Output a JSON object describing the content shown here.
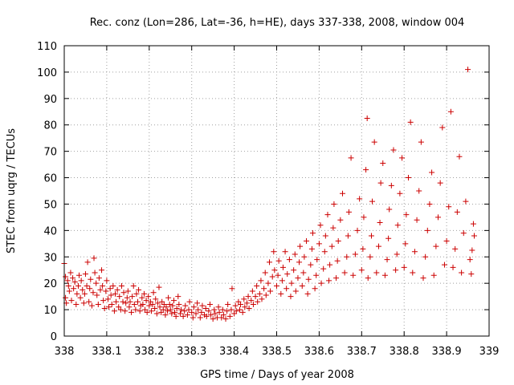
{
  "chart_data": {
    "type": "scatter",
    "title": "Rec. conz (Lon=286, Lat=-36, h=HE), days 337-338, 2008, window 004",
    "xlabel": "GPS time / Days of year 2008",
    "ylabel": "STEC from uqrg / TECUs",
    "xlim": [
      338,
      339
    ],
    "ylim": [
      0,
      110
    ],
    "xticks": [
      "338",
      "338.1",
      "338.2",
      "338.3",
      "338.4",
      "338.5",
      "338.6",
      "338.7",
      "338.8",
      "338.9",
      "339"
    ],
    "yticks": [
      "0",
      "10",
      "20",
      "30",
      "40",
      "50",
      "60",
      "70",
      "80",
      "90",
      "100",
      "110"
    ],
    "grid": true,
    "marker": "+",
    "color": "#cc0000",
    "series": [
      {
        "points": [
          [
            338.0,
            27.5
          ],
          [
            338.003,
            22.5
          ],
          [
            338.003,
            14.5
          ],
          [
            338.005,
            12.5
          ],
          [
            338.008,
            21
          ],
          [
            338.01,
            19
          ],
          [
            338.012,
            17
          ],
          [
            338.015,
            24
          ],
          [
            338.017,
            13.5
          ],
          [
            338.02,
            22
          ],
          [
            338.022,
            18
          ],
          [
            338.025,
            20.5
          ],
          [
            338.028,
            12
          ],
          [
            338.03,
            16
          ],
          [
            338.033,
            19
          ],
          [
            338.035,
            23
          ],
          [
            338.038,
            14.5
          ],
          [
            338.04,
            21
          ],
          [
            338.043,
            17.5
          ],
          [
            338.046,
            12.5
          ],
          [
            338.048,
            16
          ],
          [
            338.05,
            23.5
          ],
          [
            338.053,
            19
          ],
          [
            338.055,
            28
          ],
          [
            338.058,
            13
          ],
          [
            338.06,
            18
          ],
          [
            338.062,
            21.5
          ],
          [
            338.065,
            11.5
          ],
          [
            338.068,
            16.5
          ],
          [
            338.07,
            29.5
          ],
          [
            338.072,
            24
          ],
          [
            338.075,
            20
          ],
          [
            338.077,
            15.5
          ],
          [
            338.08,
            12
          ],
          [
            338.082,
            22
          ],
          [
            338.085,
            17.5
          ],
          [
            338.088,
            25
          ],
          [
            338.09,
            19
          ],
          [
            338.092,
            13.5
          ],
          [
            338.095,
            10.5
          ],
          [
            338.098,
            17
          ],
          [
            338.1,
            21
          ],
          [
            338.103,
            14
          ],
          [
            338.105,
            11
          ],
          [
            338.108,
            18
          ],
          [
            338.11,
            15.5
          ],
          [
            338.112,
            12
          ],
          [
            338.115,
            19
          ],
          [
            338.118,
            9.5
          ],
          [
            338.12,
            16
          ],
          [
            338.122,
            13
          ],
          [
            338.125,
            17.5
          ],
          [
            338.128,
            11
          ],
          [
            338.13,
            15
          ],
          [
            338.133,
            10
          ],
          [
            338.135,
            19
          ],
          [
            338.138,
            13
          ],
          [
            338.14,
            16.5
          ],
          [
            338.143,
            9.5
          ],
          [
            338.145,
            12.5
          ],
          [
            338.148,
            14.5
          ],
          [
            338.15,
            17
          ],
          [
            338.153,
            11
          ],
          [
            338.155,
            13
          ],
          [
            338.158,
            9
          ],
          [
            338.16,
            15
          ],
          [
            338.163,
            19
          ],
          [
            338.165,
            12
          ],
          [
            338.168,
            10
          ],
          [
            338.17,
            16
          ],
          [
            338.173,
            13
          ],
          [
            338.175,
            17.5
          ],
          [
            338.178,
            9.5
          ],
          [
            338.18,
            11.5
          ],
          [
            338.183,
            14.5
          ],
          [
            338.185,
            12
          ],
          [
            338.188,
            16
          ],
          [
            338.19,
            10
          ],
          [
            338.193,
            13.5
          ],
          [
            338.195,
            9
          ],
          [
            338.198,
            15
          ],
          [
            338.2,
            11.5
          ],
          [
            338.203,
            13
          ],
          [
            338.205,
            9.5
          ],
          [
            338.208,
            12
          ],
          [
            338.21,
            16.5
          ],
          [
            338.213,
            10.5
          ],
          [
            338.215,
            14
          ],
          [
            338.218,
            8.5
          ],
          [
            338.22,
            12.5
          ],
          [
            338.223,
            18.5
          ],
          [
            338.225,
            11
          ],
          [
            338.228,
            9
          ],
          [
            338.23,
            13
          ],
          [
            338.233,
            10
          ],
          [
            338.235,
            12
          ],
          [
            338.238,
            8
          ],
          [
            338.24,
            11
          ],
          [
            338.243,
            9.5
          ],
          [
            338.245,
            14.5
          ],
          [
            338.248,
            12
          ],
          [
            338.25,
            10
          ],
          [
            338.253,
            8.5
          ],
          [
            338.255,
            11.5
          ],
          [
            338.258,
            13.5
          ],
          [
            338.26,
            9
          ],
          [
            338.263,
            7.5
          ],
          [
            338.265,
            10.5
          ],
          [
            338.268,
            15
          ],
          [
            338.27,
            12
          ],
          [
            338.273,
            8.5
          ],
          [
            338.275,
            10
          ],
          [
            338.28,
            7.5
          ],
          [
            338.283,
            9.5
          ],
          [
            338.285,
            11.5
          ],
          [
            338.29,
            8
          ],
          [
            338.293,
            10
          ],
          [
            338.295,
            13
          ],
          [
            338.3,
            9
          ],
          [
            338.303,
            7
          ],
          [
            338.305,
            11
          ],
          [
            338.31,
            8.5
          ],
          [
            338.313,
            12.5
          ],
          [
            338.315,
            10
          ],
          [
            338.32,
            7
          ],
          [
            338.323,
            9
          ],
          [
            338.325,
            11.5
          ],
          [
            338.33,
            8
          ],
          [
            338.333,
            10.5
          ],
          [
            338.335,
            7.5
          ],
          [
            338.34,
            9.5
          ],
          [
            338.343,
            12
          ],
          [
            338.345,
            8
          ],
          [
            338.35,
            6.5
          ],
          [
            338.353,
            10
          ],
          [
            338.355,
            8.5
          ],
          [
            338.36,
            7
          ],
          [
            338.363,
            11
          ],
          [
            338.365,
            9
          ],
          [
            338.37,
            7
          ],
          [
            338.373,
            10
          ],
          [
            338.375,
            8
          ],
          [
            338.38,
            6.5
          ],
          [
            338.383,
            9.5
          ],
          [
            338.385,
            12
          ],
          [
            338.39,
            7.5
          ],
          [
            338.393,
            10
          ],
          [
            338.395,
            18
          ],
          [
            338.4,
            8.5
          ],
          [
            338.403,
            11.5
          ],
          [
            338.405,
            9.5
          ],
          [
            338.41,
            13
          ],
          [
            338.413,
            10
          ],
          [
            338.415,
            12
          ],
          [
            338.42,
            9
          ],
          [
            338.423,
            14
          ],
          [
            338.425,
            11
          ],
          [
            338.43,
            12.5
          ],
          [
            338.433,
            15
          ],
          [
            338.435,
            10.5
          ],
          [
            338.44,
            13.5
          ],
          [
            338.443,
            17
          ],
          [
            338.445,
            12
          ],
          [
            338.45,
            15
          ],
          [
            338.453,
            19
          ],
          [
            338.455,
            13
          ],
          [
            338.46,
            16
          ],
          [
            338.463,
            21
          ],
          [
            338.465,
            14
          ],
          [
            338.47,
            18
          ],
          [
            338.473,
            24
          ],
          [
            338.475,
            15.5
          ],
          [
            338.48,
            20
          ],
          [
            338.483,
            28
          ],
          [
            338.485,
            17
          ],
          [
            338.49,
            22.5
          ],
          [
            338.493,
            32
          ],
          [
            338.495,
            25
          ],
          [
            338.5,
            19
          ],
          [
            338.503,
            23
          ],
          [
            338.505,
            28.5
          ],
          [
            338.51,
            16
          ],
          [
            338.513,
            21
          ],
          [
            338.515,
            26
          ],
          [
            338.52,
            32
          ],
          [
            338.523,
            18
          ],
          [
            338.525,
            23.5
          ],
          [
            338.53,
            29
          ],
          [
            338.533,
            15
          ],
          [
            338.535,
            20
          ],
          [
            338.54,
            25
          ],
          [
            338.543,
            31
          ],
          [
            338.545,
            17
          ],
          [
            338.55,
            22
          ],
          [
            338.553,
            28
          ],
          [
            338.555,
            34
          ],
          [
            338.56,
            19
          ],
          [
            338.563,
            24
          ],
          [
            338.565,
            30
          ],
          [
            338.57,
            36
          ],
          [
            338.573,
            16
          ],
          [
            338.575,
            21.5
          ],
          [
            338.58,
            27
          ],
          [
            338.583,
            33
          ],
          [
            338.585,
            39
          ],
          [
            338.59,
            18
          ],
          [
            338.593,
            23
          ],
          [
            338.595,
            29
          ],
          [
            338.6,
            35
          ],
          [
            338.603,
            42
          ],
          [
            338.605,
            20
          ],
          [
            338.61,
            25.5
          ],
          [
            338.613,
            32
          ],
          [
            338.615,
            38
          ],
          [
            338.62,
            46
          ],
          [
            338.623,
            21
          ],
          [
            338.625,
            27
          ],
          [
            338.63,
            34
          ],
          [
            338.633,
            41
          ],
          [
            338.635,
            50
          ],
          [
            338.64,
            22
          ],
          [
            338.643,
            28.5
          ],
          [
            338.645,
            36
          ],
          [
            338.65,
            44
          ],
          [
            338.655,
            54
          ],
          [
            338.66,
            24
          ],
          [
            338.665,
            30
          ],
          [
            338.668,
            38
          ],
          [
            338.67,
            47
          ],
          [
            338.675,
            67.5
          ],
          [
            338.68,
            23
          ],
          [
            338.685,
            31
          ],
          [
            338.69,
            40
          ],
          [
            338.695,
            52
          ],
          [
            338.7,
            25
          ],
          [
            338.703,
            33
          ],
          [
            338.705,
            45
          ],
          [
            338.71,
            63
          ],
          [
            338.713,
            82.5
          ],
          [
            338.715,
            22
          ],
          [
            338.72,
            30
          ],
          [
            338.723,
            38
          ],
          [
            338.725,
            51
          ],
          [
            338.73,
            73.5
          ],
          [
            338.735,
            24
          ],
          [
            338.74,
            34
          ],
          [
            338.743,
            43
          ],
          [
            338.745,
            58
          ],
          [
            338.75,
            65.5
          ],
          [
            338.755,
            23
          ],
          [
            338.76,
            29
          ],
          [
            338.763,
            37
          ],
          [
            338.765,
            48
          ],
          [
            338.77,
            57
          ],
          [
            338.775,
            70.5
          ],
          [
            338.78,
            25
          ],
          [
            338.783,
            31
          ],
          [
            338.785,
            42
          ],
          [
            338.79,
            54
          ],
          [
            338.795,
            67.5
          ],
          [
            338.8,
            26
          ],
          [
            338.803,
            35
          ],
          [
            338.805,
            46
          ],
          [
            338.81,
            60
          ],
          [
            338.815,
            81
          ],
          [
            338.82,
            24
          ],
          [
            338.825,
            32
          ],
          [
            338.83,
            44
          ],
          [
            338.835,
            55
          ],
          [
            338.84,
            73.5
          ],
          [
            338.845,
            22
          ],
          [
            338.85,
            30
          ],
          [
            338.855,
            40
          ],
          [
            338.86,
            50
          ],
          [
            338.865,
            62
          ],
          [
            338.87,
            23
          ],
          [
            338.875,
            34
          ],
          [
            338.88,
            45
          ],
          [
            338.885,
            58
          ],
          [
            338.89,
            79
          ],
          [
            338.895,
            27
          ],
          [
            338.9,
            36
          ],
          [
            338.905,
            49
          ],
          [
            338.91,
            85
          ],
          [
            338.915,
            26
          ],
          [
            338.92,
            33
          ],
          [
            338.925,
            47
          ],
          [
            338.93,
            68
          ],
          [
            338.935,
            24
          ],
          [
            338.94,
            39
          ],
          [
            338.945,
            51
          ],
          [
            338.95,
            101
          ],
          [
            338.955,
            29
          ],
          [
            338.958,
            23.5
          ],
          [
            338.96,
            32.5
          ],
          [
            338.963,
            42.5
          ],
          [
            338.965,
            38
          ]
        ]
      }
    ]
  }
}
